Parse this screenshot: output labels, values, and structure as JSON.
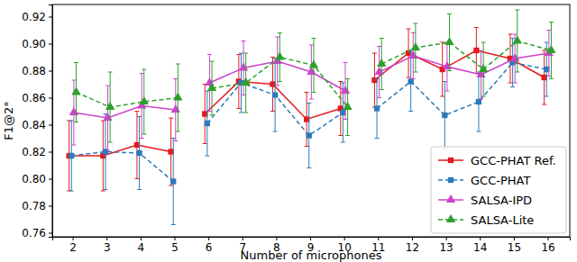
{
  "chart_data": {
    "type": "line",
    "x_label": "Number of microphones",
    "y_label": "F1@2°",
    "x": [
      2,
      3,
      4,
      5,
      null,
      6,
      7,
      8,
      9,
      10,
      null,
      11,
      12,
      13,
      14,
      15,
      16
    ],
    "xlim": [
      1.4,
      16.65
    ],
    "xticks": [
      2,
      3,
      4,
      5,
      6,
      7,
      8,
      9,
      10,
      11,
      12,
      13,
      14,
      15,
      16
    ],
    "ylim": [
      0.757,
      0.929
    ],
    "yticks": [
      0.76,
      0.78,
      {
        "value": 0.8,
        "label": "0.80"
      },
      0.82,
      0.84,
      0.86,
      0.88,
      {
        "value": 0.9,
        "label": "0.90"
      },
      0.92
    ],
    "grid": false,
    "legend": "lower right",
    "series": [
      {
        "name": "GCC-PHAT Ref.",
        "color": "#e31a1c",
        "marker": "square",
        "line_style": "solid",
        "values": [
          0.817,
          0.817,
          0.825,
          0.82,
          null,
          0.848,
          0.872,
          0.87,
          0.844,
          0.852,
          null,
          0.873,
          0.893,
          0.881,
          0.895,
          0.889,
          0.875
        ],
        "errors": [
          0.026,
          0.026,
          0.025,
          0.025,
          null,
          0.022,
          0.02,
          0.02,
          0.02,
          0.02,
          null,
          0.02,
          0.018,
          0.02,
          0.017,
          0.018,
          0.02
        ]
      },
      {
        "name": "GCC-PHAT",
        "color": "#2b7bba",
        "marker": "square",
        "line_style": "dashed",
        "values": [
          0.817,
          0.82,
          0.819,
          0.798,
          null,
          0.841,
          0.871,
          0.862,
          0.832,
          0.849,
          null,
          0.852,
          0.872,
          0.847,
          0.857,
          0.886,
          0.881
        ],
        "errors": [
          0.026,
          0.028,
          0.027,
          0.032,
          null,
          0.024,
          0.022,
          0.027,
          0.024,
          0.022,
          null,
          0.022,
          0.022,
          0.025,
          0.022,
          0.018,
          0.02
        ]
      },
      {
        "name": "SALSA-IPD",
        "color": "#cc44cc",
        "marker": "triangle",
        "line_style": "solid",
        "values": [
          0.849,
          0.845,
          0.854,
          0.851,
          null,
          0.871,
          0.882,
          0.887,
          0.879,
          0.865,
          null,
          0.879,
          0.891,
          0.883,
          0.877,
          0.889,
          0.893
        ],
        "errors": [
          0.024,
          0.024,
          0.024,
          0.023,
          null,
          0.021,
          0.02,
          0.018,
          0.02,
          0.021,
          null,
          0.019,
          0.017,
          0.018,
          0.018,
          0.018,
          0.017
        ]
      },
      {
        "name": "SALSA-Lite",
        "color": "#2ca02c",
        "marker": "triangle",
        "line_style": "dashed",
        "values": [
          0.864,
          0.853,
          0.857,
          0.86,
          null,
          0.867,
          0.871,
          0.89,
          0.884,
          0.853,
          null,
          0.885,
          0.897,
          0.901,
          0.881,
          0.902,
          0.895
        ],
        "errors": [
          0.022,
          0.026,
          0.024,
          0.025,
          null,
          0.02,
          0.022,
          0.018,
          0.02,
          0.021,
          null,
          0.019,
          0.018,
          0.021,
          0.02,
          0.023,
          0.021
        ]
      }
    ]
  }
}
